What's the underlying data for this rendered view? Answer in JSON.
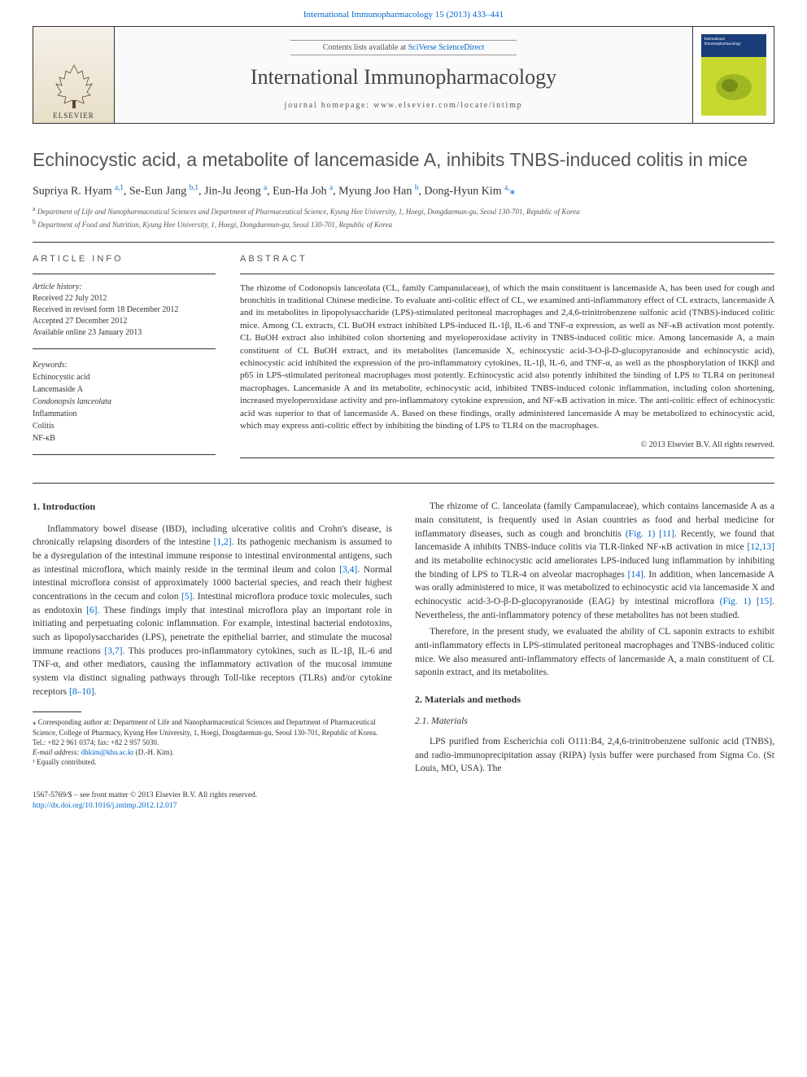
{
  "header": {
    "citation": "International Immunopharmacology 15 (2013) 433–441",
    "contents_prefix": "Contents lists available at ",
    "contents_link": "SciVerse ScienceDirect",
    "journal_name": "International Immunopharmacology",
    "homepage_label": "journal homepage: www.elsevier.com/locate/intimp",
    "publisher": "ELSEVIER",
    "cover_title": "International Immunopharmacology"
  },
  "article": {
    "title": "Echinocystic acid, a metabolite of lancemaside A, inhibits TNBS-induced colitis in mice",
    "authors_html": "Supriya R. Hyam <sup>a,1</sup>, Se-Eun Jang <sup>b,1</sup>, Jin-Ju Jeong <sup>a</sup>, Eun-Ha Joh <sup>a</sup>, Myung Joo Han <sup>b</sup>, Dong-Hyun Kim <sup>a,</sup><span class='star'>⁎</span>",
    "affiliations": [
      {
        "sup": "a",
        "text": "Department of Life and Nanopharmaceutical Sciences and Department of Pharmaceutical Science, Kyung Hee University, 1, Hoegi, Dongdaemun-gu, Seoul 130-701, Republic of Korea"
      },
      {
        "sup": "b",
        "text": "Department of Food and Nutrition, Kyung Hee University, 1, Hoegi, Dongdaemun-gu, Seoul 130-701, Republic of Korea"
      }
    ]
  },
  "info": {
    "section_label": "ARTICLE INFO",
    "history_label": "Article history:",
    "history": [
      "Received 22 July 2012",
      "Received in revised form 18 December 2012",
      "Accepted 27 December 2012",
      "Available online 23 January 2013"
    ],
    "keywords_label": "Keywords:",
    "keywords": [
      "Echinocystic acid",
      "Lancemaside A",
      "Condonopsis lanceolata",
      "Inflammation",
      "Colitis",
      "NF-κB"
    ]
  },
  "abstract": {
    "section_label": "ABSTRACT",
    "text": "The rhizome of Codonopsis lanceolata (CL, family Campanulaceae), of which the main constituent is lancemaside A, has been used for cough and bronchitis in traditional Chinese medicine. To evaluate anti-colitic effect of CL, we examined anti-inflammatory effect of CL extracts, lancemaside A and its metabolites in lipopolysaccharide (LPS)-stimulated peritoneal macrophages and 2,4,6-trinitrobenzene sulfonic acid (TNBS)-induced colitic mice. Among CL extracts, CL BuOH extract inhibited LPS-induced IL-1β, IL-6 and TNF-α expression, as well as NF-κB activation most potently. CL BuOH extract also inhibited colon shortening and myeloperoxidase activity in TNBS-induced colitic mice. Among lancemaside A, a main constituent of CL BuOH extract, and its metabolites (lancemaside X, echinocystic acid-3-O-β-D-glucopyranoside and echinocystic acid), echinocystic acid inhibited the expression of the pro-inflammatory cytokines, IL-1β, IL-6, and TNF-α, as well as the phosphorylation of IKKβ and p65 in LPS-stimulated peritoneal macrophages most potently. Echinocystic acid also potently inhibited the binding of LPS to TLR4 on peritoneal macrophages. Lancemaside A and its metabolite, echinocystic acid, inhibited TNBS-induced colonic inflammation, including colon shortening, increased myeloperoxidase activity and pro-inflammatory cytokine expression, and NF-κB activation in mice. The anti-colitic effect of echinocystic acid was superior to that of lancemaside A. Based on these findings, orally administered lancemaside A may be metabolized to echinocystic acid, which may express anti-colitic effect by inhibiting the binding of LPS to TLR4 on the macrophages.",
    "copyright": "© 2013 Elsevier B.V. All rights reserved."
  },
  "body": {
    "intro_heading": "1. Introduction",
    "intro_p1": "Inflammatory bowel disease (IBD), including ulcerative colitis and Crohn's disease, is chronically relapsing disorders of the intestine [1,2]. Its pathogenic mechanism is assumed to be a dysregulation of the intestinal immune response to intestinal environmental antigens, such as intestinal microflora, which mainly reside in the terminal ileum and colon [3,4]. Normal intestinal microflora consist of approximately 1000 bacterial species, and reach their highest concentrations in the cecum and colon [5]. Intestinal microflora produce toxic molecules, such as endotoxin [6]. These findings imply that intestinal microflora play an important role in initiating and perpetuating colonic inflammation. For example, intestinal bacterial endotoxins, such as lipopolysaccharides (LPS), penetrate the epithelial barrier, and stimulate the mucosal immune reactions [3,7]. This produces pro-inflammatory cytokines, such as IL-1β, IL-6 and TNF-α, and other mediators, causing the inflammatory activation of the mucosal immune system via distinct signaling pathways through Toll-like receptors (TLRs) and/or cytokine receptors [8–10].",
    "intro_p2": "The rhizome of C. lanceolata (family Campanulaceae), which contains lancemaside A as a main consitutent, is frequently used in Asian countries as food and herbal medicine for inflammatory diseases, such as cough and bronchitis (Fig. 1) [11]. Recently, we found that lancemaside A inhibits TNBS-induce colitis via TLR-linked NF-κB activation in mice [12,13] and its metabolite echinocystic acid ameliorates LPS-induced lung inflammation by inhibiting the binding of LPS to TLR-4 on alveolar macrophages [14]. In addition, when lancemaside A was orally administered to mice, it was metabolized to echinocystic acid via lancemaside X and echinocystic acid-3-O-β-D-glucopyranoside (EAG) by intestinal microflora (Fig. 1) [15]. Nevertheless, the anti-inflammatory potency of these metabolites has not been studied.",
    "intro_p3": "Therefore, in the present study, we evaluated the ability of CL saponin extracts to exhibit anti-inflammatory effects in LPS-stimulated peritoneal macrophages and TNBS-induced colitic mice. We also measured anti-inflammatory effects of lancemaside A, a main constituent of CL saponin extract, and its metabolites.",
    "mm_heading": "2. Materials and methods",
    "mm_sub1": "2.1. Materials",
    "mm_p1": "LPS purified from Escherichia coli O111:B4, 2,4,6-trinitrobenzene sulfonic acid (TNBS), and radio-immunoprecipitation assay (RIPA) lysis buffer were purchased from Sigma Co. (St Louis, MO, USA). The"
  },
  "footnotes": {
    "corr": "⁎ Corresponding author at: Department of Life and Nanopharmaceutical Sciences and Department of Pharmaceutical Science, College of Pharmacy, Kyung Hee University, 1, Hoegi, Dongdaemun-gu, Seoul 130-701, Republic of Korea. Tel.: +82 2 961 0374; fax: +82 2 957 5030.",
    "email_label": "E-mail address: ",
    "email": "dhkim@khu.ac.kr",
    "email_suffix": " (D.-H. Kim).",
    "eq": "¹ Equally contributed."
  },
  "bottom": {
    "line1": "1567-5769/$ – see front matter © 2013 Elsevier B.V. All rights reserved.",
    "doi": "http://dx.doi.org/10.1016/j.intimp.2012.12.017"
  },
  "colors": {
    "link": "#0066cc",
    "text": "#333333",
    "muted": "#555555",
    "rule": "#333333"
  }
}
